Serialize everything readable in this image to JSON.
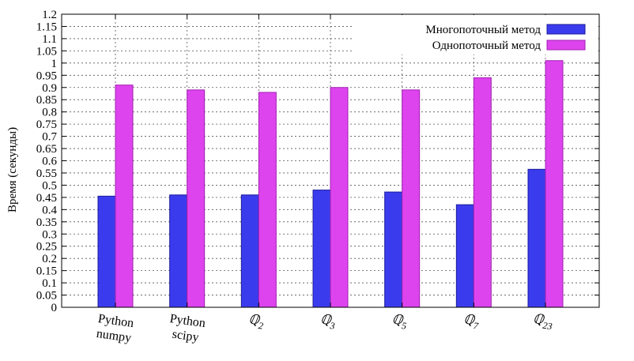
{
  "chart_data": {
    "type": "bar",
    "ylabel": "Время (секунды)",
    "xlabel": "",
    "title": "",
    "ylim": [
      0,
      1.2
    ],
    "y_ticks": [
      "0",
      "0.05",
      "0.1",
      "0.15",
      "0.2",
      "0.25",
      "0.3",
      "0.35",
      "0.4",
      "0.45",
      "0.5",
      "0.55",
      "0.6",
      "0.65",
      "0.7",
      "0.75",
      "0.8",
      "0.85",
      "0.9",
      "0.95",
      "1",
      "1.05",
      "1.1",
      "1.15",
      "1.2"
    ],
    "grid": true,
    "legend_position": "top-right",
    "categories": [
      {
        "main": "Python",
        "second": "numpy"
      },
      {
        "main": "Python",
        "second": "scipy"
      },
      {
        "main": "ℚ",
        "sub": "2"
      },
      {
        "main": "ℚ",
        "sub": "3"
      },
      {
        "main": "ℚ",
        "sub": "5"
      },
      {
        "main": "ℚ",
        "sub": "7"
      },
      {
        "main": "ℚ",
        "sub": "23"
      }
    ],
    "series": [
      {
        "name": "Многопоточный метод",
        "color": "#3b3bee",
        "edge": "#1a1a9a",
        "values": [
          0.455,
          0.46,
          0.46,
          0.48,
          0.472,
          0.42,
          0.565
        ]
      },
      {
        "name": "Однопоточный метод",
        "color": "#dd44ee",
        "edge": "#a022b0",
        "values": [
          0.91,
          0.89,
          0.88,
          0.9,
          0.89,
          0.94,
          1.01
        ]
      }
    ]
  }
}
